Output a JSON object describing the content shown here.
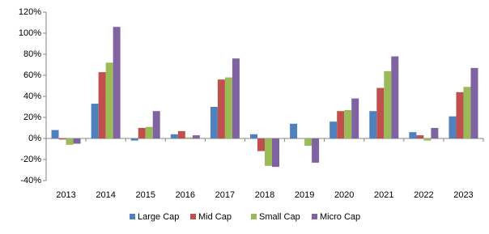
{
  "chart_data": {
    "type": "bar",
    "categories": [
      "2013",
      "2014",
      "2015",
      "2016",
      "2017",
      "2018",
      "2019",
      "2020",
      "2021",
      "2022",
      "2023"
    ],
    "series": [
      {
        "name": "Large Cap",
        "color": "#4f81bd",
        "values": [
          8,
          33,
          -2,
          4,
          30,
          4,
          14,
          16,
          26,
          6,
          21
        ]
      },
      {
        "name": "Mid Cap",
        "color": "#c0504d",
        "values": [
          -1,
          63,
          10,
          7,
          56,
          -12,
          0,
          26,
          48,
          3,
          44
        ]
      },
      {
        "name": "Small Cap",
        "color": "#9bbb59",
        "values": [
          -6,
          72,
          11,
          1,
          58,
          -26,
          -7,
          27,
          64,
          -2,
          49
        ]
      },
      {
        "name": "Micro Cap",
        "color": "#8064a2",
        "values": [
          -5,
          106,
          26,
          3,
          76,
          -27,
          -23,
          38,
          78,
          10,
          67
        ]
      }
    ],
    "ylim": [
      -40,
      120
    ],
    "yticks": [
      {
        "value": -40,
        "label": "-40%"
      },
      {
        "value": -20,
        "label": "-20%"
      },
      {
        "value": 0,
        "label": "0%"
      },
      {
        "value": 20,
        "label": "20%"
      },
      {
        "value": 40,
        "label": "40%"
      },
      {
        "value": 60,
        "label": "60%"
      },
      {
        "value": 80,
        "label": "80%"
      },
      {
        "value": 100,
        "label": "100%"
      },
      {
        "value": 120,
        "label": "120%"
      }
    ],
    "grid": false,
    "legend": "bottom"
  }
}
